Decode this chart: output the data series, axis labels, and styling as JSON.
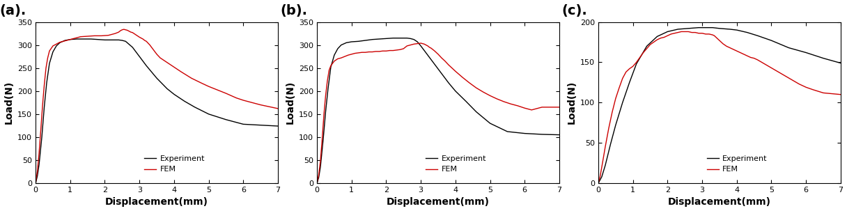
{
  "panels": [
    {
      "label": "(a).",
      "ylabel": "Load(N)",
      "xlabel": "Displacement(mm)",
      "xlim": [
        0,
        7
      ],
      "ylim": [
        0,
        350
      ],
      "yticks": [
        0,
        50,
        100,
        150,
        200,
        250,
        300,
        350
      ],
      "xticks": [
        0,
        1,
        2,
        3,
        4,
        5,
        6,
        7
      ],
      "exp_x": [
        0,
        0.05,
        0.1,
        0.18,
        0.25,
        0.32,
        0.4,
        0.5,
        0.6,
        0.7,
        0.85,
        1.0,
        1.2,
        1.4,
        1.6,
        1.8,
        2.0,
        2.2,
        2.4,
        2.5,
        2.6,
        2.8,
        3.0,
        3.2,
        3.5,
        3.8,
        4.0,
        4.3,
        4.6,
        5.0,
        5.5,
        6.0,
        6.5,
        7.0
      ],
      "exp_y": [
        0,
        15,
        40,
        100,
        165,
        218,
        260,
        285,
        298,
        305,
        310,
        312,
        313,
        313,
        313,
        312,
        311,
        311,
        311,
        310,
        308,
        295,
        275,
        255,
        228,
        205,
        193,
        178,
        165,
        150,
        138,
        128,
        126,
        124
      ],
      "fem_x": [
        0,
        0.05,
        0.1,
        0.15,
        0.2,
        0.25,
        0.3,
        0.35,
        0.4,
        0.5,
        0.6,
        0.7,
        0.8,
        0.9,
        1.0,
        1.1,
        1.2,
        1.3,
        1.5,
        1.7,
        1.9,
        2.1,
        2.3,
        2.4,
        2.45,
        2.5,
        2.55,
        2.6,
        2.65,
        2.7,
        2.75,
        2.8,
        2.9,
        3.0,
        3.05,
        3.1,
        3.15,
        3.2,
        3.3,
        3.4,
        3.5,
        3.6,
        3.8,
        4.0,
        4.2,
        4.5,
        4.8,
        5.0,
        5.2,
        5.5,
        5.8,
        6.0,
        6.5,
        7.0
      ],
      "fem_y": [
        0,
        25,
        65,
        115,
        168,
        213,
        250,
        272,
        287,
        298,
        302,
        306,
        308,
        310,
        312,
        314,
        316,
        318,
        319,
        320,
        320,
        321,
        325,
        328,
        331,
        333,
        334,
        333,
        332,
        330,
        328,
        327,
        322,
        317,
        315,
        313,
        310,
        308,
        300,
        290,
        280,
        272,
        262,
        252,
        242,
        228,
        217,
        210,
        204,
        195,
        185,
        180,
        170,
        162
      ]
    },
    {
      "label": "(b).",
      "ylabel": "Load(N)",
      "xlabel": "Displacement(mm)",
      "xlim": [
        0,
        7
      ],
      "ylim": [
        0,
        350
      ],
      "yticks": [
        0,
        50,
        100,
        150,
        200,
        250,
        300,
        350
      ],
      "xticks": [
        0,
        1,
        2,
        3,
        4,
        5,
        6,
        7
      ],
      "exp_x": [
        0,
        0.05,
        0.1,
        0.18,
        0.25,
        0.32,
        0.4,
        0.5,
        0.6,
        0.7,
        0.85,
        1.0,
        1.2,
        1.4,
        1.6,
        1.8,
        2.0,
        2.2,
        2.4,
        2.5,
        2.6,
        2.7,
        2.8,
        2.9,
        3.0,
        3.2,
        3.5,
        3.8,
        4.0,
        4.3,
        4.6,
        5.0,
        5.5,
        6.0,
        6.5,
        7.0
      ],
      "exp_y": [
        0,
        12,
        35,
        95,
        155,
        205,
        252,
        278,
        292,
        300,
        305,
        307,
        308,
        310,
        312,
        313,
        314,
        315,
        315,
        315,
        315,
        314,
        312,
        307,
        298,
        278,
        248,
        218,
        200,
        178,
        155,
        130,
        112,
        108,
        106,
        105
      ],
      "fem_x": [
        0,
        0.05,
        0.1,
        0.15,
        0.2,
        0.25,
        0.3,
        0.35,
        0.4,
        0.5,
        0.6,
        0.7,
        0.8,
        0.9,
        1.0,
        1.1,
        1.2,
        1.3,
        1.4,
        1.5,
        1.6,
        1.7,
        1.8,
        1.9,
        2.0,
        2.1,
        2.2,
        2.3,
        2.4,
        2.5,
        2.6,
        2.7,
        2.8,
        2.9,
        3.0,
        3.05,
        3.1,
        3.15,
        3.2,
        3.25,
        3.3,
        3.4,
        3.5,
        3.6,
        3.7,
        3.8,
        3.9,
        4.0,
        4.2,
        4.4,
        4.6,
        4.8,
        5.0,
        5.2,
        5.4,
        5.6,
        5.8,
        6.0,
        6.2,
        6.5,
        7.0
      ],
      "fem_y": [
        0,
        18,
        48,
        95,
        148,
        190,
        222,
        245,
        255,
        265,
        270,
        272,
        275,
        278,
        280,
        282,
        283,
        284,
        284,
        285,
        285,
        286,
        286,
        287,
        287,
        288,
        288,
        289,
        290,
        292,
        298,
        300,
        302,
        303,
        304,
        303,
        302,
        300,
        298,
        295,
        293,
        287,
        280,
        272,
        265,
        257,
        250,
        243,
        230,
        218,
        207,
        198,
        190,
        183,
        177,
        172,
        168,
        163,
        159,
        165,
        165
      ]
    },
    {
      "label": "(c).",
      "ylabel": "Load(N)",
      "xlabel": "Displacement(mm)",
      "xlim": [
        0,
        7
      ],
      "ylim": [
        0,
        200
      ],
      "yticks": [
        0,
        50,
        100,
        150,
        200
      ],
      "xticks": [
        0,
        1,
        2,
        3,
        4,
        5,
        6,
        7
      ],
      "exp_x": [
        0,
        0.1,
        0.2,
        0.35,
        0.5,
        0.7,
        0.9,
        1.1,
        1.4,
        1.7,
        2.0,
        2.3,
        2.6,
        2.9,
        3.1,
        3.3,
        3.5,
        3.8,
        4.0,
        4.3,
        4.6,
        5.0,
        5.5,
        6.0,
        6.5,
        7.0
      ],
      "exp_y": [
        0,
        8,
        22,
        48,
        72,
        100,
        125,
        148,
        170,
        182,
        188,
        191,
        192,
        193,
        193,
        193,
        192,
        191,
        190,
        187,
        183,
        177,
        168,
        162,
        155,
        149
      ],
      "fem_x": [
        0,
        0.05,
        0.1,
        0.2,
        0.3,
        0.4,
        0.5,
        0.6,
        0.7,
        0.8,
        0.9,
        1.0,
        1.1,
        1.2,
        1.3,
        1.4,
        1.5,
        1.6,
        1.7,
        1.8,
        1.9,
        2.0,
        2.1,
        2.2,
        2.3,
        2.4,
        2.5,
        2.6,
        2.7,
        2.8,
        2.9,
        3.0,
        3.1,
        3.2,
        3.3,
        3.35,
        3.4,
        3.45,
        3.5,
        3.55,
        3.6,
        3.7,
        3.8,
        3.9,
        4.0,
        4.1,
        4.2,
        4.3,
        4.4,
        4.5,
        4.6,
        4.8,
        5.0,
        5.2,
        5.4,
        5.6,
        5.8,
        6.0,
        6.2,
        6.5,
        7.0
      ],
      "fem_y": [
        0,
        8,
        20,
        45,
        68,
        88,
        105,
        118,
        130,
        138,
        142,
        145,
        150,
        156,
        162,
        167,
        172,
        175,
        178,
        180,
        181,
        183,
        185,
        186,
        187,
        188,
        188,
        188,
        187,
        187,
        186,
        186,
        185,
        185,
        184,
        183,
        181,
        179,
        177,
        175,
        173,
        170,
        168,
        166,
        164,
        162,
        160,
        158,
        156,
        155,
        153,
        148,
        143,
        138,
        133,
        128,
        123,
        119,
        116,
        112,
        110
      ]
    }
  ],
  "exp_color": "#000000",
  "fem_color": "#cc0000",
  "linewidth": 1.0,
  "label_fontsize": 14,
  "axis_label_fontsize": 10,
  "tick_fontsize": 8,
  "legend_fontsize": 8,
  "background_color": "#ffffff"
}
